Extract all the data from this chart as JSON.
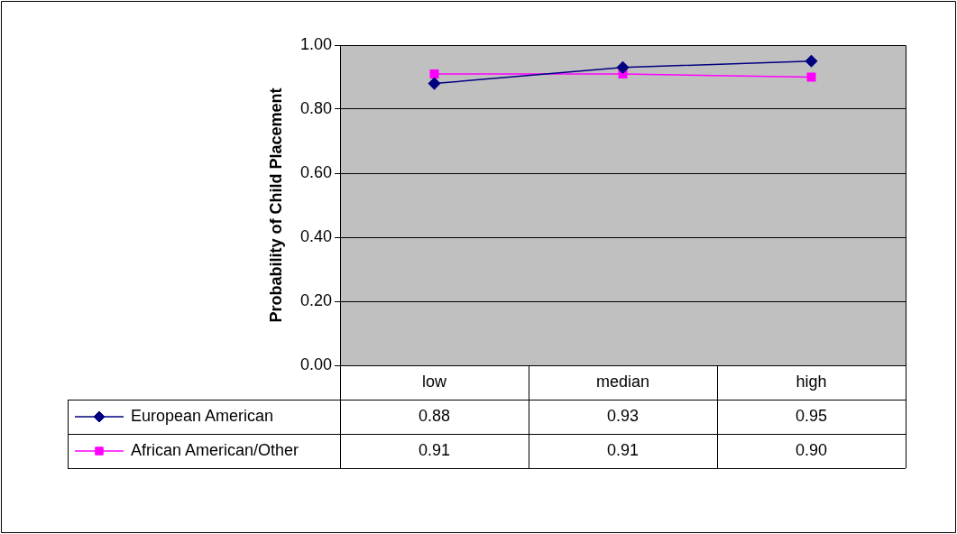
{
  "chart_data": {
    "type": "line",
    "ylabel": "Probability of Child Placement",
    "categories": [
      "low",
      "median",
      "high"
    ],
    "series": [
      {
        "name": "European American",
        "color": "#000080",
        "marker": "diamond",
        "values": [
          0.88,
          0.93,
          0.95
        ],
        "value_labels": [
          "0.88",
          "0.93",
          "0.95"
        ]
      },
      {
        "name": "African American/Other",
        "color": "#ff00ff",
        "marker": "square",
        "values": [
          0.91,
          0.91,
          0.9
        ],
        "value_labels": [
          "0.91",
          "0.91",
          "0.90"
        ]
      }
    ],
    "ylim": [
      0,
      1
    ],
    "yticks": [
      {
        "value": 0,
        "label": "0.00"
      },
      {
        "value": 0.2,
        "label": "0.20"
      },
      {
        "value": 0.4,
        "label": "0.40"
      },
      {
        "value": 0.6,
        "label": "0.60"
      },
      {
        "value": 0.8,
        "label": "0.80"
      },
      {
        "value": 1,
        "label": "1.00"
      }
    ],
    "grid": "y",
    "legend": "bottom",
    "line_style": "solid"
  }
}
